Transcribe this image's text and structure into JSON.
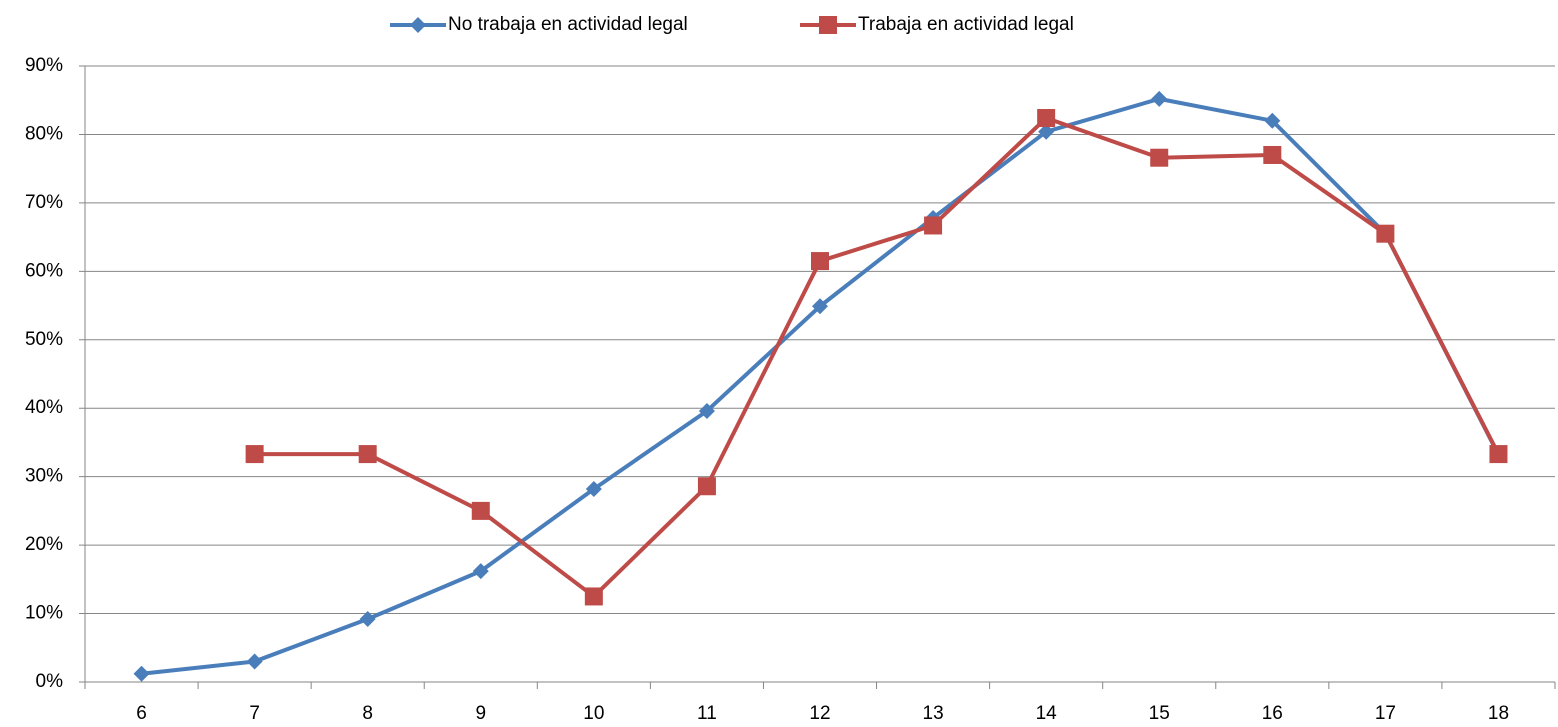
{
  "chart_data": {
    "type": "line",
    "categories": [
      "6",
      "7",
      "8",
      "9",
      "10",
      "11",
      "12",
      "13",
      "14",
      "15",
      "16",
      "17",
      "18"
    ],
    "series": [
      {
        "name": "No trabaja en actividad legal",
        "color": "#4a7ebb",
        "marker": "diamond",
        "values": [
          1.2,
          3,
          9.2,
          16.2,
          28.2,
          39.6,
          54.9,
          67.8,
          80.4,
          85.2,
          82,
          65.5,
          33.2
        ]
      },
      {
        "name": "Trabaja en actividad legal",
        "color": "#be4b48",
        "marker": "square",
        "values": [
          null,
          33.3,
          33.3,
          25,
          12.5,
          28.6,
          61.5,
          66.7,
          82.4,
          76.6,
          77,
          65.5,
          33.3
        ]
      }
    ],
    "ylim": [
      0,
      90
    ],
    "yticks": [
      {
        "value": 0,
        "label": "0%"
      },
      {
        "value": 10,
        "label": "10%"
      },
      {
        "value": 20,
        "label": "20%"
      },
      {
        "value": 30,
        "label": "30%"
      },
      {
        "value": 40,
        "label": "40%"
      },
      {
        "value": 50,
        "label": "50%"
      },
      {
        "value": 60,
        "label": "60%"
      },
      {
        "value": 70,
        "label": "70%"
      },
      {
        "value": 80,
        "label": "80%"
      },
      {
        "value": 90,
        "label": "90%"
      }
    ],
    "grid": true,
    "legend": "top"
  }
}
